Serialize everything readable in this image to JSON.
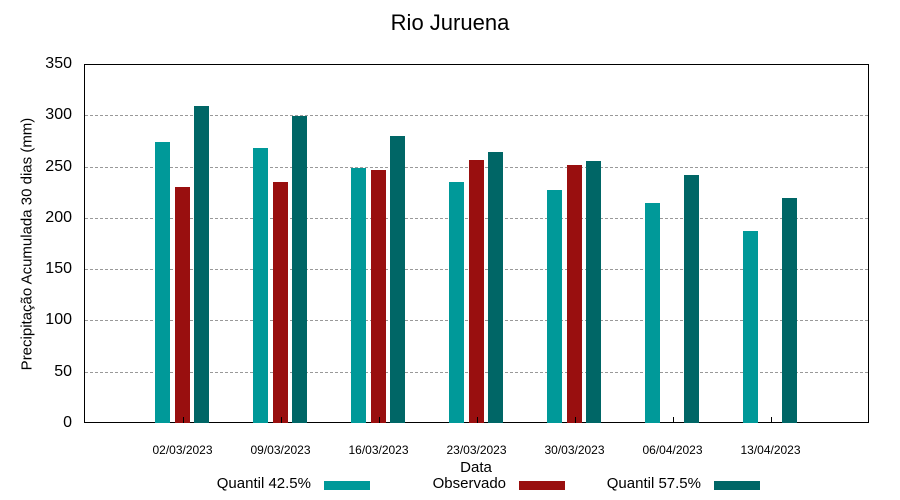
{
  "chart_data": {
    "type": "bar",
    "title": "Rio Juruena",
    "xlabel": "Data",
    "ylabel": "Precipitação Acumulada 30 dias (mm)",
    "ylim": [
      0,
      350
    ],
    "yticks": [
      0,
      50,
      100,
      150,
      200,
      250,
      300,
      350
    ],
    "grid": true,
    "legend_position": "bottom",
    "categories": [
      "02/03/2023",
      "09/03/2023",
      "16/03/2023",
      "23/03/2023",
      "30/03/2023",
      "06/04/2023",
      "13/04/2023"
    ],
    "series": [
      {
        "name": "Quantil 42.5%",
        "color": "#009999",
        "values": [
          274,
          268,
          249,
          235,
          227,
          214,
          187
        ]
      },
      {
        "name": "Observado",
        "color": "#990f0f",
        "values": [
          230,
          235,
          247,
          256,
          252,
          null,
          null
        ]
      },
      {
        "name": "Quantil 57.5%",
        "color": "#006666",
        "values": [
          309,
          299,
          280,
          264,
          255,
          242,
          219
        ]
      }
    ]
  }
}
